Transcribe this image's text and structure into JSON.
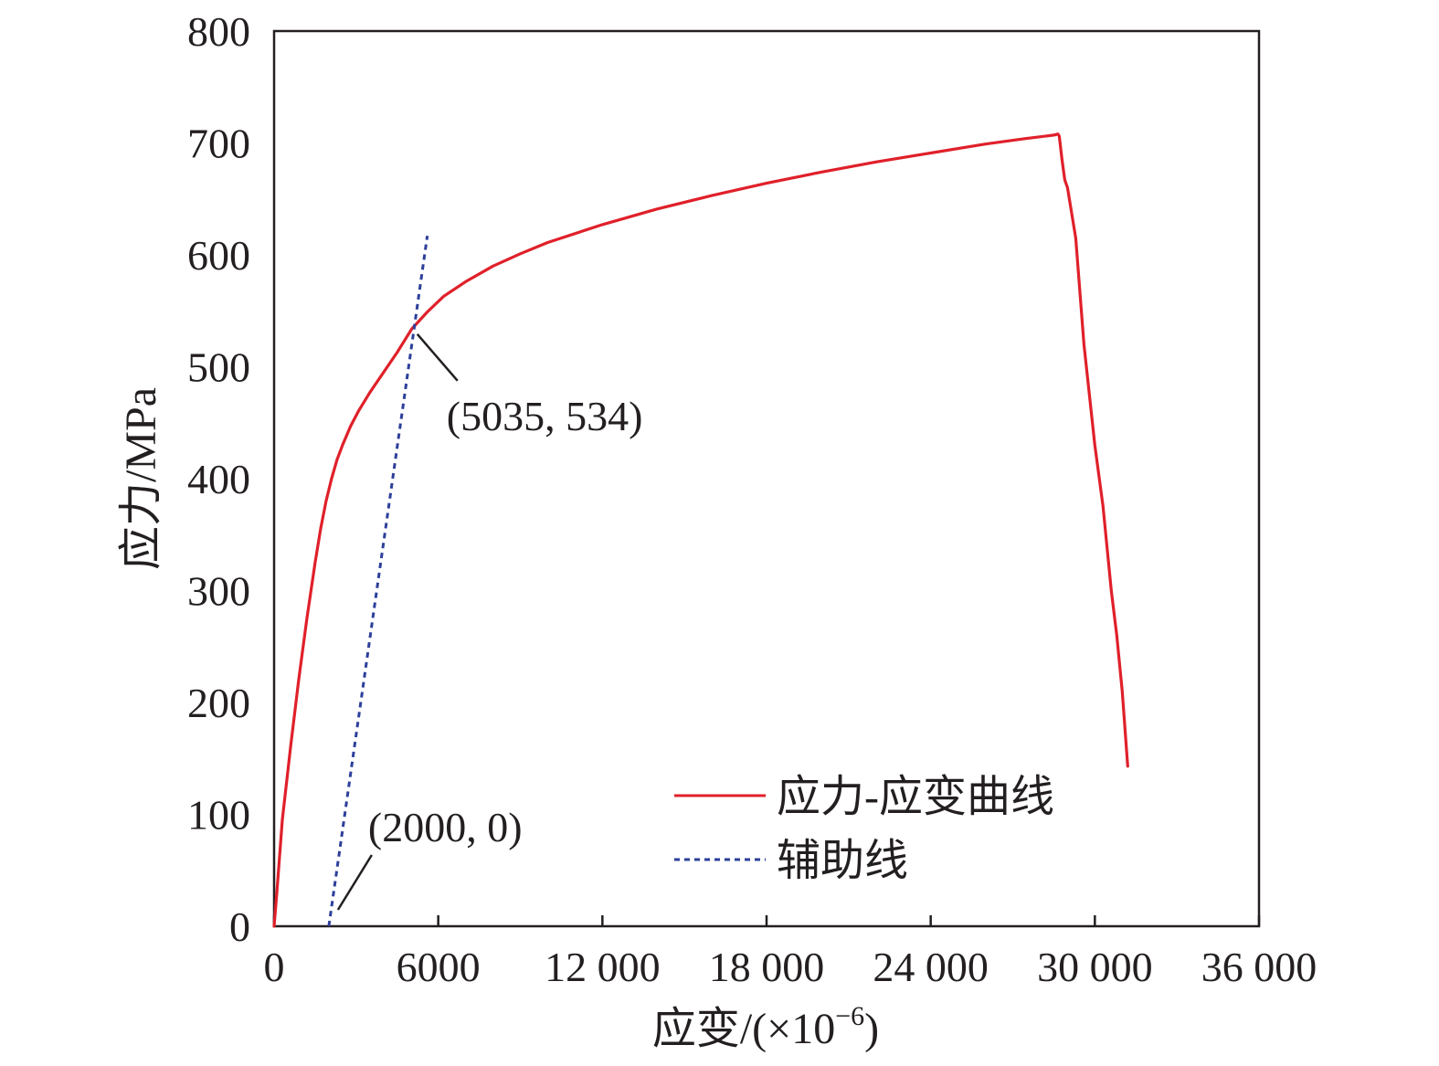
{
  "chart_data": {
    "type": "line",
    "xlabel": "应变/(×10",
    "xlabel_sup": "−6",
    "xlabel_tail": ")",
    "ylabel": "应力/MPa",
    "xlim": [
      0,
      36000
    ],
    "ylim": [
      0,
      800
    ],
    "x_ticks": [
      0,
      6000,
      12000,
      18000,
      24000,
      30000,
      36000
    ],
    "x_tick_labels": [
      "0",
      "6000",
      "12 000",
      "18 000",
      "24 000",
      "30 000",
      "36 000"
    ],
    "y_ticks": [
      0,
      100,
      200,
      300,
      400,
      500,
      600,
      700,
      800
    ],
    "y_tick_labels": [
      "0",
      "100",
      "200",
      "300",
      "400",
      "500",
      "600",
      "700",
      "800"
    ],
    "grid": false,
    "legend_position": "lower-right",
    "series": [
      {
        "name": "应力-应变曲线",
        "color": "#e0202a",
        "style": "solid",
        "x": [
          0,
          100,
          300,
          600,
          900,
          1200,
          1500,
          1700,
          1900,
          2100,
          2300,
          2500,
          2800,
          3100,
          3500,
          4000,
          4500,
          5035,
          5600,
          6200,
          7000,
          8000,
          9000,
          10000,
          12000,
          14000,
          16000,
          18000,
          20000,
          22000,
          24000,
          26000,
          27500,
          28500,
          28650,
          28700,
          28800,
          28900,
          29000,
          29300,
          29600,
          30000,
          30300,
          30600,
          30800,
          31000,
          31200
        ],
        "y": [
          0,
          30,
          95,
          160,
          220,
          275,
          325,
          355,
          380,
          400,
          417,
          430,
          447,
          461,
          477,
          495,
          513,
          534,
          549,
          563,
          576,
          590,
          601,
          611,
          627,
          641,
          653,
          664,
          674,
          683,
          691,
          699,
          704,
          707,
          708,
          706,
          685,
          667,
          660,
          615,
          520,
          430,
          375,
          300,
          260,
          210,
          143
        ]
      },
      {
        "name": "辅助线",
        "color": "#2d3f9a",
        "style": "dashed",
        "x": [
          2000,
          5600
        ],
        "y": [
          0,
          617
        ]
      }
    ],
    "annotations": [
      {
        "text": "(5035, 534)",
        "x": 5035,
        "y": 534
      },
      {
        "text": "(2000, 0)",
        "x": 2000,
        "y": 0
      }
    ]
  }
}
